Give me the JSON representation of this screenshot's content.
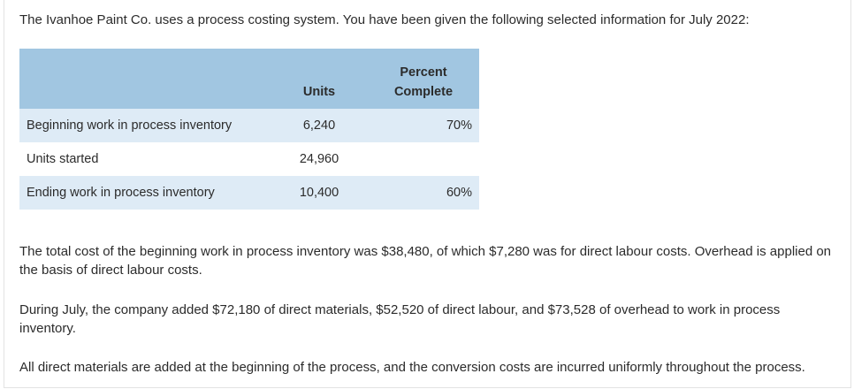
{
  "intro": "The Ivanhoe Paint Co. uses a process costing system. You have been given the following selected information for July 2022:",
  "table": {
    "headers": {
      "label": "",
      "units": "Units",
      "percent_line1": "Percent",
      "percent_line2": "Complete"
    },
    "rows": [
      {
        "label": "Beginning work in process inventory",
        "units": "6,240",
        "percent": "70%"
      },
      {
        "label": "Units started",
        "units": "24,960",
        "percent": ""
      },
      {
        "label": "Ending work in process inventory",
        "units": "10,400",
        "percent": "60%"
      }
    ]
  },
  "paragraphs": [
    "The total cost of the beginning work in process inventory was $38,480, of which $7,280 was for direct labour costs. Overhead is applied on the basis of direct labour costs.",
    "During July, the company added $72,180 of direct materials, $52,520 of direct labour, and $73,528 of overhead to work in process inventory.",
    "All direct materials are added at the beginning of the process, and the conversion costs are incurred uniformly throughout the process."
  ],
  "colors": {
    "header_bg": "#a1c6e1",
    "stripe_bg": "#deebf6",
    "text": "#2b2b2b"
  }
}
